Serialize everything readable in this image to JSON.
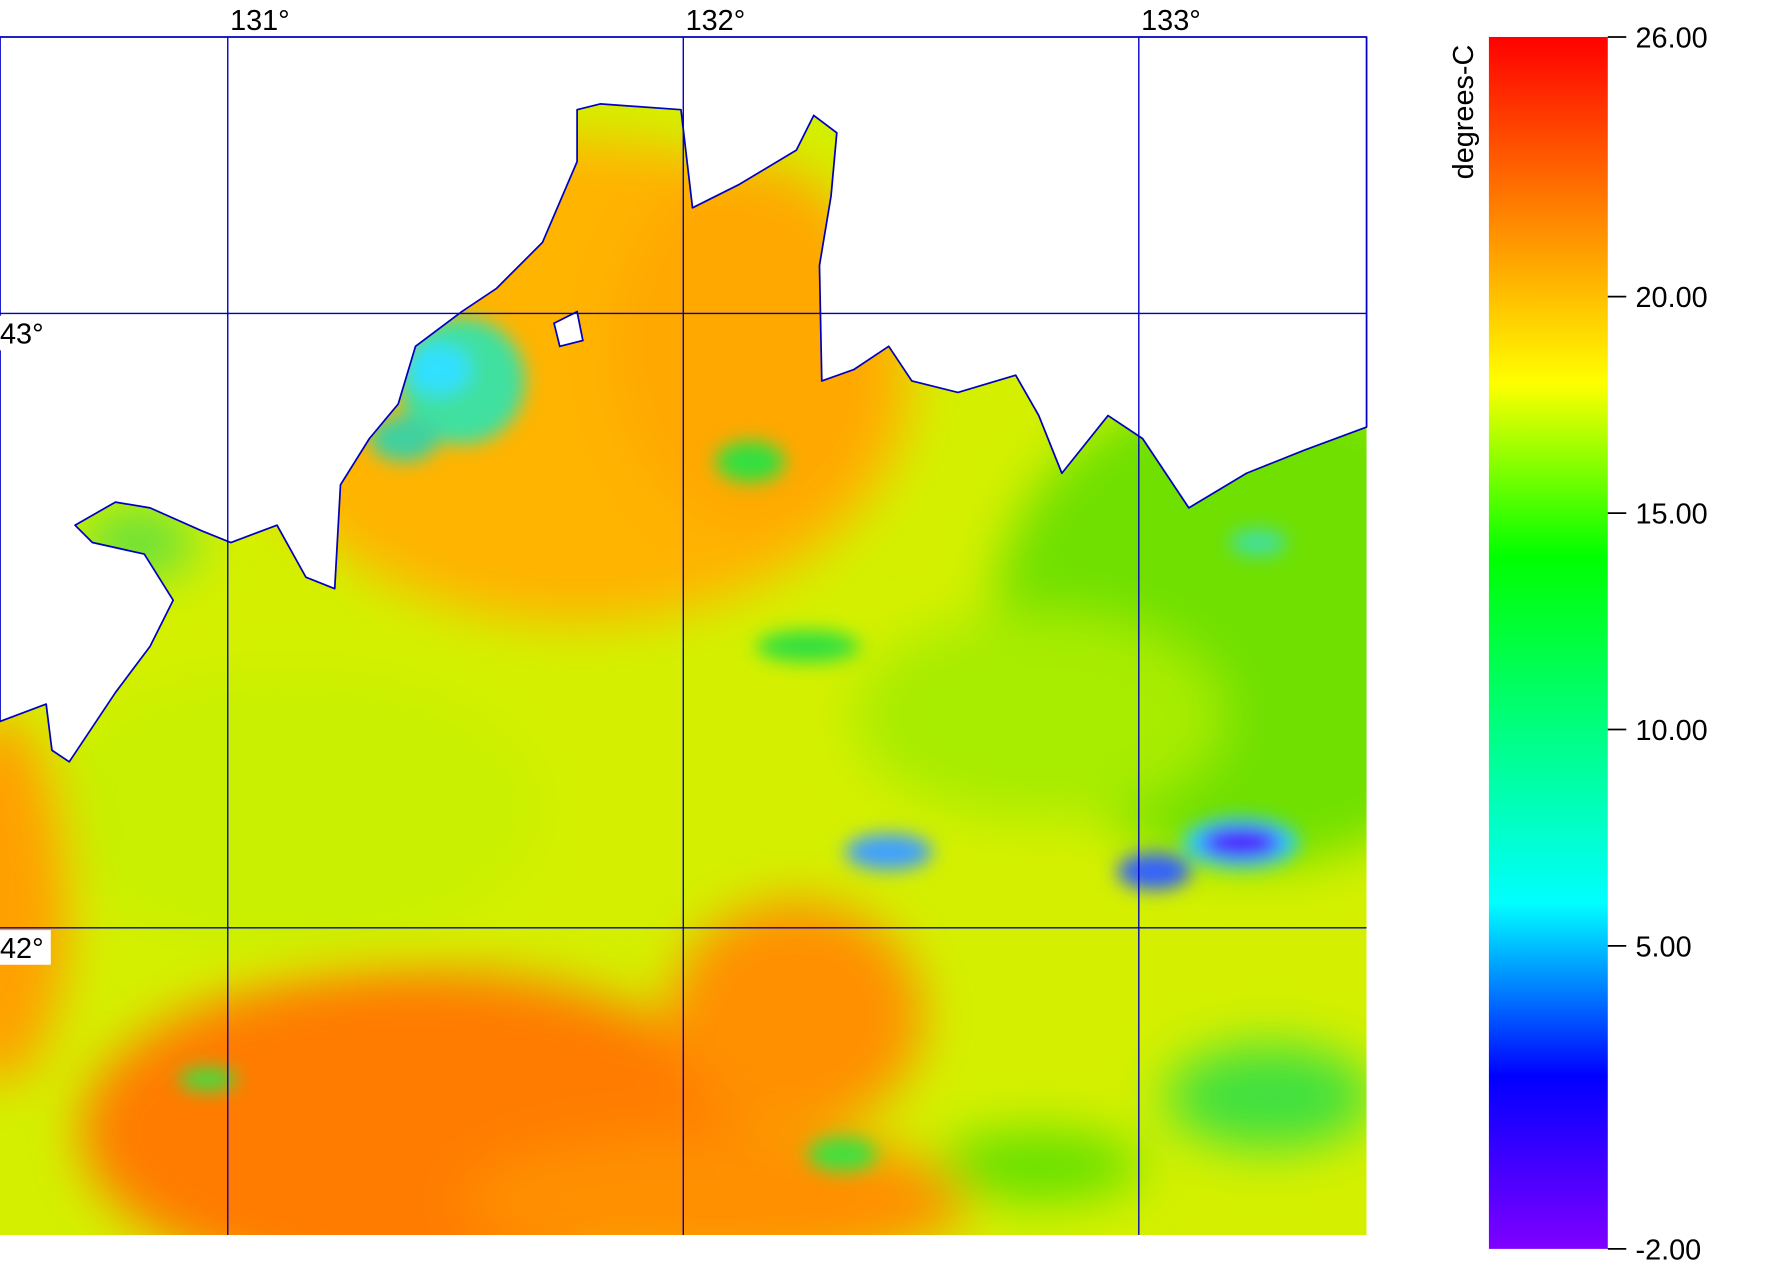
{
  "chart_data": {
    "type": "map",
    "xlim": [
      130.5,
      133.5
    ],
    "ylim": [
      41.5,
      43.45
    ],
    "xticks": [
      {
        "value": 131,
        "label": "131°"
      },
      {
        "value": 132,
        "label": "132°"
      },
      {
        "value": 133,
        "label": "133°"
      }
    ],
    "yticks": [
      {
        "value": 42,
        "label": "42°"
      },
      {
        "value": 43,
        "label": "43°"
      }
    ],
    "grid_color": "#0000c0",
    "colorbar": {
      "label": "degrees-C",
      "lim": [
        -2,
        26
      ],
      "ticks": [
        {
          "value": 26,
          "label": "26.00"
        },
        {
          "value": 20,
          "label": "20.00"
        },
        {
          "value": 15,
          "label": "15.00"
        },
        {
          "value": 10,
          "label": "10.00"
        },
        {
          "value": 5,
          "label": "5.00"
        },
        {
          "value": -2,
          "label": "-2.00"
        }
      ],
      "colors": [
        "#ff0000",
        "#ff8000",
        "#ffff00",
        "#00ff00",
        "#00ff80",
        "#00ffff",
        "#0000ff",
        "#8000ff"
      ]
    }
  }
}
